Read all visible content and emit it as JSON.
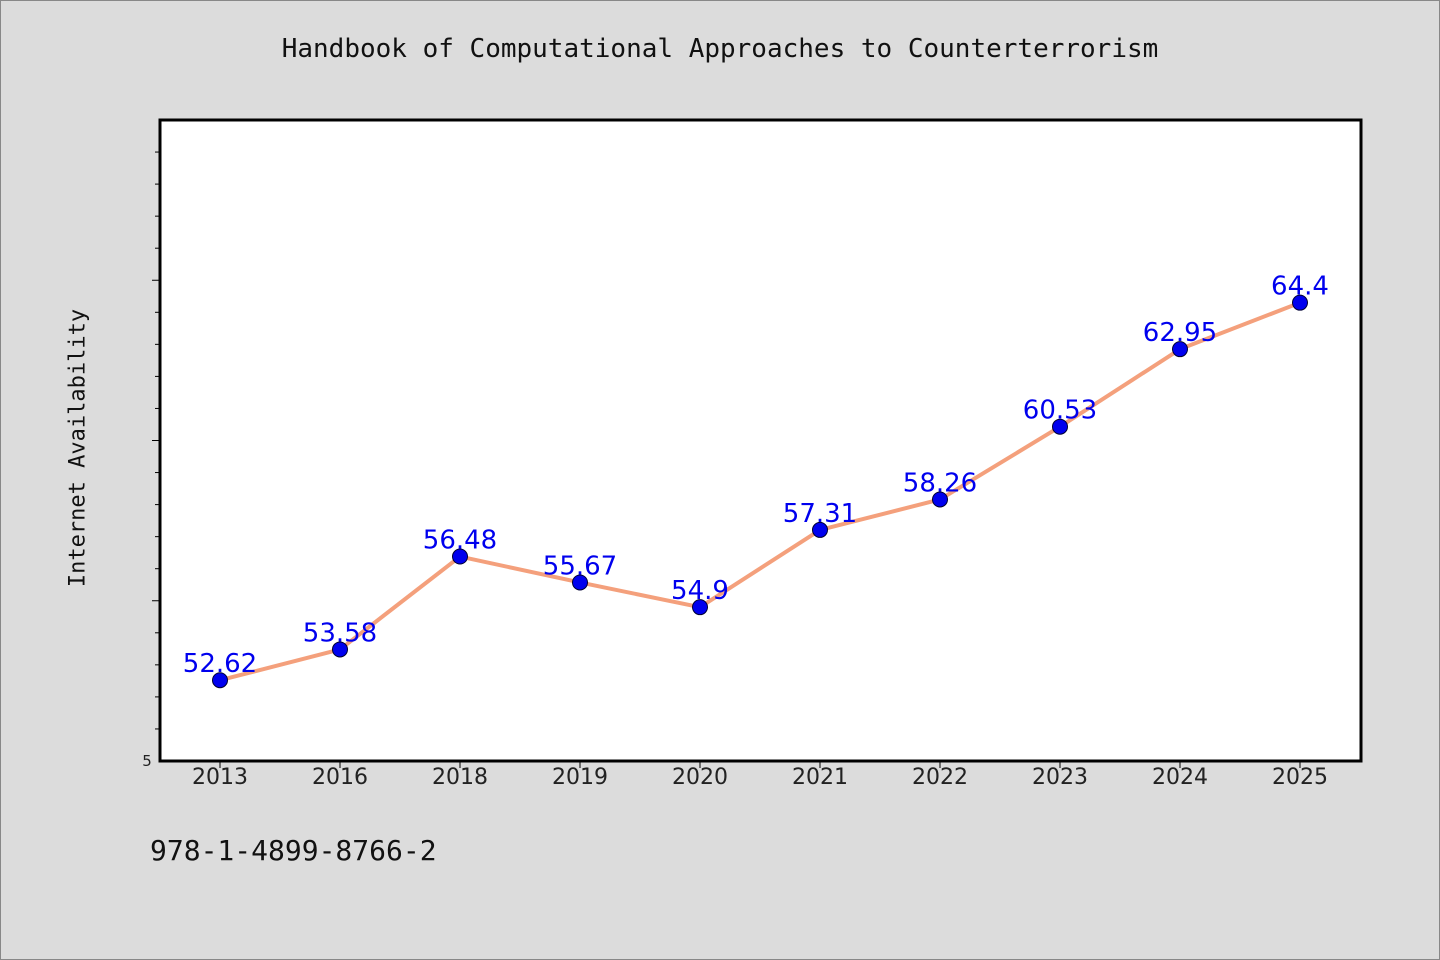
{
  "title": "Handbook of Computational Approaches to Counterterrorism",
  "isbn": "978-1-4899-8766-2",
  "chart_data": {
    "type": "line",
    "title": "Handbook of Computational Approaches to Counterterrorism",
    "xlabel": "",
    "ylabel": "Internet Availability",
    "categories": [
      "2013",
      "2016",
      "2018",
      "2019",
      "2020",
      "2021",
      "2022",
      "2023",
      "2024",
      "2025"
    ],
    "series": [
      {
        "values": [
          52.62,
          53.58,
          56.48,
          55.67,
          54.9,
          57.31,
          58.26,
          60.53,
          62.95,
          64.4
        ],
        "labels": [
          "52.62",
          "53.58",
          "56.48",
          "55.67",
          "54.9",
          "57.31",
          "58.26",
          "60.53",
          "62.95",
          "64.4"
        ]
      }
    ],
    "y_min_label": "5",
    "ylim": [
      50.1,
      70.1
    ],
    "grid": false,
    "line_color": "#f4a07c",
    "marker_color": "#0000ee",
    "label_color": "#0000ee",
    "plot_background": "#ffffff",
    "page_background": "#dcdcdc"
  }
}
